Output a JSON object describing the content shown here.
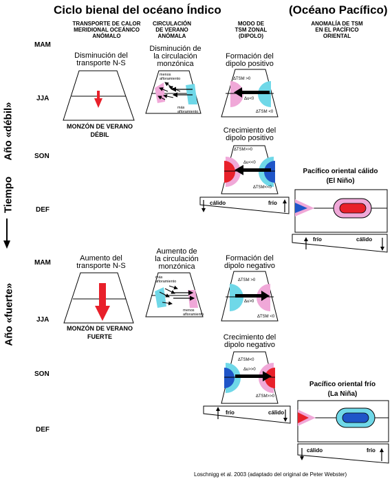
{
  "title": "Ciclo bienal del océano Índico",
  "title_pacific": "(Océano Pacífico)",
  "columns": {
    "heat": "TRANSPORTE DE CALOR\nMERIDIONAL OCEÁNICO\nANÓMALO",
    "circ": "CIRCULACIÓN\nDE VERANO\nANÓMALA",
    "dipole": "MODO DE\nTSM ZONAL\n(DIPOLO)",
    "pac": "ANOMALÍA DE TSM\nEN EL PACÍFICO\nORIENTAL"
  },
  "axis": {
    "weak_year": "Año «débil»",
    "time": "Tiempo",
    "strong_year": "Año «fuerte»"
  },
  "seasons": {
    "mam1": "MAM",
    "jja1": "JJA",
    "son1": "SON",
    "def1": "DEF",
    "mam2": "MAM",
    "jja2": "JJA",
    "son2": "SON",
    "def2": "DEF"
  },
  "weak": {
    "heat_title": "Disminución del\ntransporte N-S",
    "heat_note": "MONZÓN DE VERANO\nDÉBIL",
    "circ_title": "Disminución de\nla circulación\nmonzónica",
    "circ_less": "menos\nafloramiento",
    "circ_more": "más\nafloramiento",
    "dip1_title": "Formación del\ndipolo positivo",
    "dip1_t1": "ΔTSM >0",
    "dip1_u": "Δu<0",
    "dip1_t2": "ΔTSM <0",
    "dip2_title": "Crecimiento del\ndipolo positivo",
    "dip2_t1": "ΔTSM>>0",
    "dip2_u": "Δu<<0",
    "dip2_t2": "ΔTSM<<0",
    "bar_left": "cálido",
    "bar_right": "frío"
  },
  "strong": {
    "heat_title": "Aumento del\ntransporte N-S",
    "heat_note": "MONZÓN DE VERANO\nFUERTE",
    "circ_title": "Aumento de\nla circulación\nmonzónica",
    "circ_more": "más\nafloramiento",
    "circ_less": "menos\nafloramiento",
    "dip1_title": "Formación del\ndipolo negativo",
    "dip1_t1": "ΔTSM >0",
    "dip1_u": "Δu>0",
    "dip1_t2": "ΔTSM <0",
    "dip2_title": "Crecimiento del\ndipolo negativo",
    "dip2_t1": "ΔTSM<0",
    "dip2_u": "Δu>>0",
    "dip2_t2": "ΔTSM>>0",
    "bar_left": "frío",
    "bar_right": "cálido"
  },
  "pacific": {
    "warm_title": "Pacífico oriental cálido\n(El Niño)",
    "warm_bar_left": "frío",
    "warm_bar_right": "cálido",
    "cold_title": "Pacífico oriental frío\n(La Niña)",
    "cold_bar_left": "cálido",
    "cold_bar_right": "frío"
  },
  "credit": "Loschnigg et al. 2003 (adaptado del original de Peter Webster)",
  "colors": {
    "red": "#e8202a",
    "blue": "#1f55c8",
    "pink": "#f0a8d8",
    "cyan": "#6fd8e8",
    "redfill": "#ff2020"
  }
}
